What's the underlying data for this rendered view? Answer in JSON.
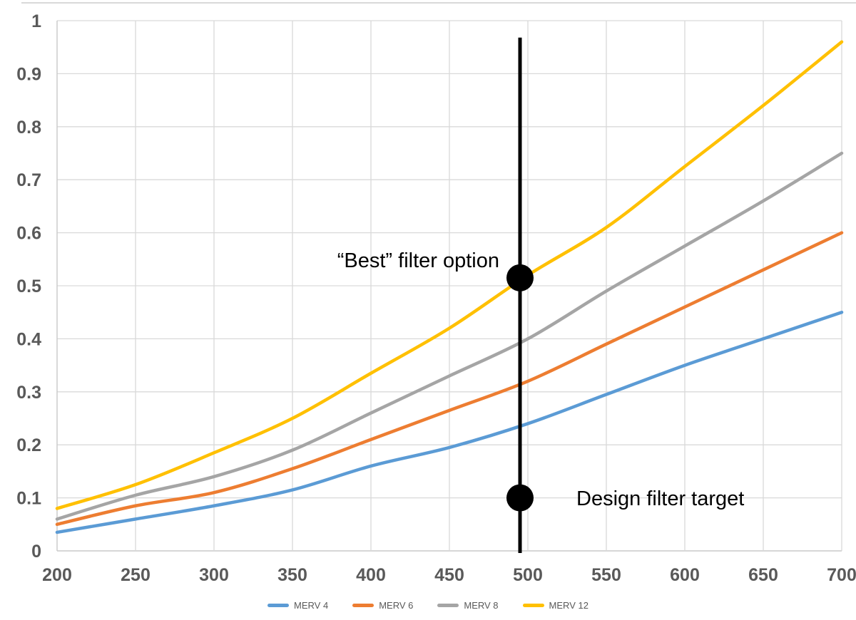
{
  "page": {
    "background": "#FFFFFF",
    "top_rule_color": "#D9D9D9"
  },
  "chart_data": {
    "type": "line",
    "title": "",
    "xlabel": "",
    "ylabel": "",
    "xlim": [
      200,
      700
    ],
    "ylim": [
      0,
      1
    ],
    "grid": true,
    "legend_position": "bottom-center",
    "x": [
      200,
      250,
      300,
      350,
      400,
      450,
      500,
      550,
      600,
      650,
      700
    ],
    "xtick_labels": [
      "200",
      "250",
      "300",
      "350",
      "400",
      "450",
      "500",
      "550",
      "600",
      "650",
      "700"
    ],
    "ytick_values": [
      0,
      0.1,
      0.2,
      0.3,
      0.4,
      0.5,
      0.6,
      0.7,
      0.8,
      0.9,
      1
    ],
    "ytick_labels": [
      "0",
      "0.1",
      "0.2",
      "0.3",
      "0.4",
      "0.5",
      "0.6",
      "0.7",
      "0.8",
      "0.9",
      "1"
    ],
    "series": [
      {
        "name": "MERV 4",
        "color": "#5B9BD5",
        "values": [
          0.035,
          0.06,
          0.085,
          0.115,
          0.16,
          0.195,
          0.24,
          0.295,
          0.35,
          0.4,
          0.45
        ]
      },
      {
        "name": "MERV 6",
        "color": "#ED7D31",
        "values": [
          0.05,
          0.085,
          0.11,
          0.155,
          0.21,
          0.265,
          0.32,
          0.39,
          0.46,
          0.53,
          0.6
        ]
      },
      {
        "name": "MERV 8",
        "color": "#A5A5A5",
        "values": [
          0.06,
          0.105,
          0.14,
          0.19,
          0.26,
          0.33,
          0.4,
          0.49,
          0.575,
          0.66,
          0.75
        ]
      },
      {
        "name": "MERV 12",
        "color": "#FFC000",
        "values": [
          0.08,
          0.125,
          0.185,
          0.25,
          0.335,
          0.42,
          0.52,
          0.61,
          0.725,
          0.84,
          0.96
        ]
      }
    ],
    "marker_line": {
      "x": 495,
      "y_from": 0,
      "y_to": 0.968,
      "color": "#000000",
      "width": 5
    },
    "markers": [
      {
        "x": 495,
        "y": 0.515,
        "radius": 19,
        "color": "#000000"
      },
      {
        "x": 495,
        "y": 0.1,
        "radius": 19,
        "color": "#000000"
      }
    ],
    "annotations": [
      {
        "text": "“Best” filter option",
        "align": "end"
      },
      {
        "text": "Design filter target",
        "align": "start"
      }
    ],
    "colors": {
      "gridline": "#D9D9D9",
      "axis_line": "#C9C9C9",
      "tick_label": "#595959",
      "annotation_text": "#000000"
    }
  }
}
